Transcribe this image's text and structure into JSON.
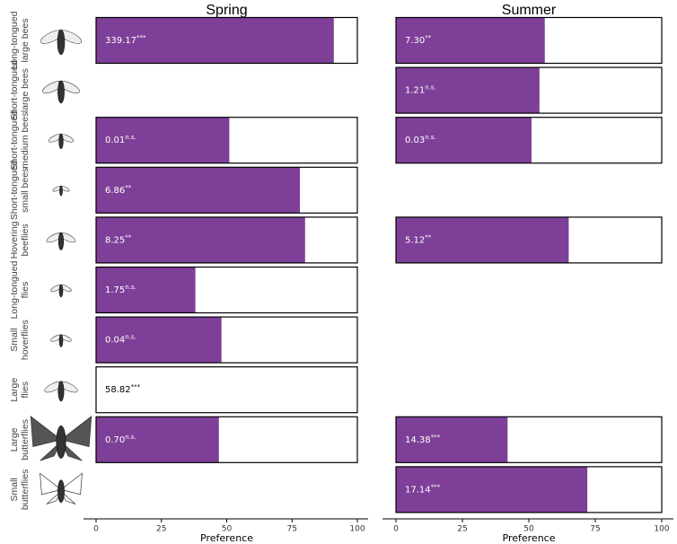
{
  "chart_data": {
    "type": "bar",
    "orientation": "horizontal",
    "color": "#7e3f98",
    "categories": [
      [
        "Long-tongued",
        "large bees"
      ],
      [
        "Short-tongued",
        "large bees"
      ],
      [
        "Short-tongued",
        "medium bees"
      ],
      [
        "Short-tongued",
        "small bees"
      ],
      [
        "Hovering",
        "beeflies"
      ],
      [
        "Long-tongued",
        "flies"
      ],
      [
        "Small",
        "hoverflies"
      ],
      [
        "Large",
        "flies"
      ],
      [
        "Large",
        "butterflies"
      ],
      [
        "Small",
        "butterflies"
      ]
    ],
    "panels": [
      {
        "title": "Spring",
        "xlabel": "Preference",
        "xlim": [
          0,
          100
        ],
        "xticks": [
          0,
          25,
          50,
          75,
          100
        ],
        "values": [
          91,
          null,
          51,
          78,
          80,
          38,
          48,
          0,
          47,
          null
        ],
        "stat_labels": [
          "339.17",
          null,
          "0.01",
          "6.86",
          "8.25",
          "1.75",
          "0.04",
          "58.82",
          "0.70",
          null
        ],
        "significance": [
          "***",
          null,
          "n.s.",
          "**",
          "**",
          "n.s.",
          "n.s.",
          "***",
          "n.s.",
          null
        ]
      },
      {
        "title": "Summer",
        "xlabel": "Preference",
        "xlim": [
          0,
          100
        ],
        "xticks": [
          0,
          25,
          50,
          75,
          100
        ],
        "values": [
          56,
          54,
          51,
          null,
          65,
          null,
          null,
          null,
          42,
          72
        ],
        "stat_labels": [
          "7.30",
          "1.21",
          "0.03",
          null,
          "5.12",
          null,
          null,
          null,
          "14.38",
          "17.14"
        ],
        "significance": [
          "**",
          "n.s.",
          "n.s.",
          null,
          "**",
          null,
          null,
          null,
          "***",
          "***"
        ]
      }
    ]
  }
}
